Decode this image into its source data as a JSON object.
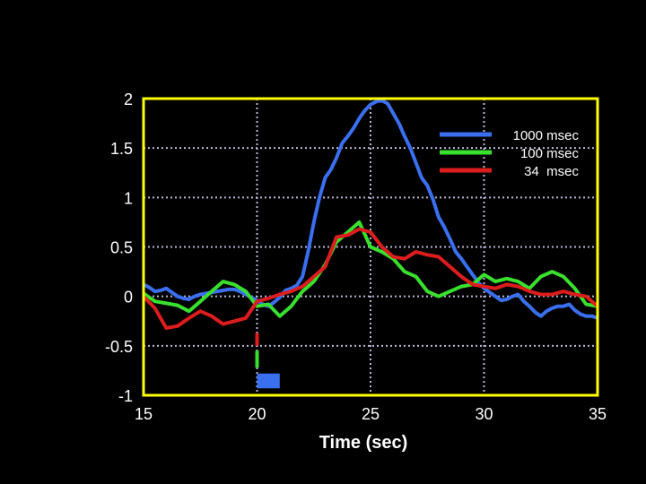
{
  "chart_data": {
    "type": "line",
    "xlabel": "Time (sec)",
    "ylabel": "",
    "xlim": [
      15,
      35
    ],
    "ylim": [
      -1,
      2
    ],
    "xticks": [
      15,
      20,
      25,
      30,
      35
    ],
    "xtick_labels": [
      "15",
      "20",
      "25",
      "30",
      "35"
    ],
    "yticks": [
      2,
      1.5,
      1,
      0.5,
      0,
      -0.5,
      -1
    ],
    "ytick_labels": [
      "2",
      "1.5",
      "1",
      "0.5",
      "0",
      "-0.5",
      "-1"
    ],
    "grid": true,
    "legend_position": "top-right",
    "colors": {
      "background": "#000000",
      "frame": "#ffff00",
      "grid": "#b8b8d8",
      "text": "#ffffff",
      "stimulus_marker": "#3a6ff0"
    },
    "stimulus": {
      "x_start": 20,
      "x_end": 21,
      "y_low": -0.93,
      "y_high": -0.78
    },
    "series": [
      {
        "name": "1000 msec",
        "color": "#3a6ff0",
        "x": [
          15,
          15.25,
          15.5,
          15.75,
          16,
          16.25,
          16.5,
          16.75,
          17,
          17.25,
          17.5,
          17.75,
          18,
          18.25,
          18.5,
          18.75,
          19,
          19.25,
          19.5,
          19.75,
          20,
          20.25,
          20.5,
          20.75,
          21,
          21.25,
          21.5,
          21.75,
          22,
          22.25,
          22.5,
          22.75,
          23,
          23.25,
          23.5,
          23.75,
          24,
          24.25,
          24.5,
          24.75,
          25,
          25.25,
          25.5,
          25.75,
          26,
          26.25,
          26.5,
          26.75,
          27,
          27.25,
          27.5,
          27.75,
          28,
          28.25,
          28.5,
          28.75,
          29,
          29.25,
          29.5,
          29.75,
          30,
          30.25,
          30.5,
          30.75,
          31,
          31.25,
          31.5,
          31.75,
          32,
          32.25,
          32.5,
          32.75,
          33,
          33.25,
          33.5,
          33.75,
          34,
          34.25,
          34.5,
          34.75,
          35
        ],
        "y": [
          0.12,
          0.09,
          0.05,
          0.06,
          0.08,
          0.04,
          0.0,
          -0.02,
          -0.03,
          0.0,
          0.02,
          0.03,
          0.04,
          0.05,
          0.06,
          0.07,
          0.07,
          0.05,
          0.02,
          -0.01,
          -0.04,
          -0.08,
          -0.1,
          -0.06,
          -0.01,
          0.06,
          0.08,
          0.11,
          0.2,
          0.45,
          0.75,
          1.0,
          1.2,
          1.28,
          1.4,
          1.55,
          1.62,
          1.7,
          1.8,
          1.88,
          1.94,
          1.97,
          1.98,
          1.95,
          1.85,
          1.75,
          1.62,
          1.5,
          1.35,
          1.2,
          1.12,
          0.98,
          0.8,
          0.7,
          0.58,
          0.45,
          0.38,
          0.3,
          0.22,
          0.14,
          0.08,
          0.04,
          0.0,
          -0.04,
          -0.03,
          0.0,
          0.02,
          -0.05,
          -0.1,
          -0.16,
          -0.2,
          -0.15,
          -0.12,
          -0.1,
          -0.1,
          -0.08,
          -0.14,
          -0.18,
          -0.2,
          -0.2,
          -0.22
        ]
      },
      {
        "name": "100 msec",
        "color": "#39e02d",
        "x": [
          15,
          15.5,
          16,
          16.5,
          17,
          17.5,
          18,
          18.5,
          19,
          19.5,
          20,
          20.5,
          21,
          21.5,
          22,
          22.5,
          23,
          23.5,
          24,
          24.5,
          25,
          25.5,
          26,
          26.5,
          27,
          27.5,
          28,
          28.5,
          29,
          29.5,
          30,
          30.5,
          31,
          31.5,
          32,
          32.5,
          33,
          33.5,
          34,
          34.5,
          35
        ],
        "y": [
          0.03,
          -0.05,
          -0.07,
          -0.09,
          -0.15,
          -0.05,
          0.05,
          0.15,
          0.12,
          0.05,
          -0.1,
          -0.08,
          -0.2,
          -0.1,
          0.05,
          0.15,
          0.32,
          0.55,
          0.65,
          0.75,
          0.5,
          0.45,
          0.38,
          0.25,
          0.2,
          0.05,
          0.0,
          0.05,
          0.1,
          0.12,
          0.22,
          0.15,
          0.18,
          0.15,
          0.08,
          0.2,
          0.25,
          0.2,
          0.08,
          -0.08,
          -0.1
        ]
      },
      {
        "name": "34  msec",
        "color": "#dd1d1d",
        "x": [
          15,
          15.5,
          16,
          16.5,
          17,
          17.5,
          18,
          18.5,
          19,
          19.5,
          20,
          20.5,
          21,
          21.5,
          22,
          22.5,
          23,
          23.5,
          24,
          24.5,
          25,
          25.5,
          26,
          26.5,
          27,
          27.5,
          28,
          28.5,
          29,
          29.5,
          30,
          30.5,
          31,
          31.5,
          32,
          32.5,
          33,
          33.5,
          34,
          34.5,
          35
        ],
        "y": [
          0.0,
          -0.12,
          -0.32,
          -0.3,
          -0.22,
          -0.15,
          -0.2,
          -0.28,
          -0.25,
          -0.22,
          -0.05,
          -0.02,
          0.02,
          0.05,
          0.1,
          0.2,
          0.3,
          0.6,
          0.62,
          0.68,
          0.65,
          0.5,
          0.4,
          0.38,
          0.45,
          0.42,
          0.4,
          0.3,
          0.2,
          0.12,
          0.1,
          0.08,
          0.12,
          0.1,
          0.05,
          0.02,
          0.02,
          0.05,
          0.02,
          0.0,
          -0.1
        ]
      }
    ]
  }
}
